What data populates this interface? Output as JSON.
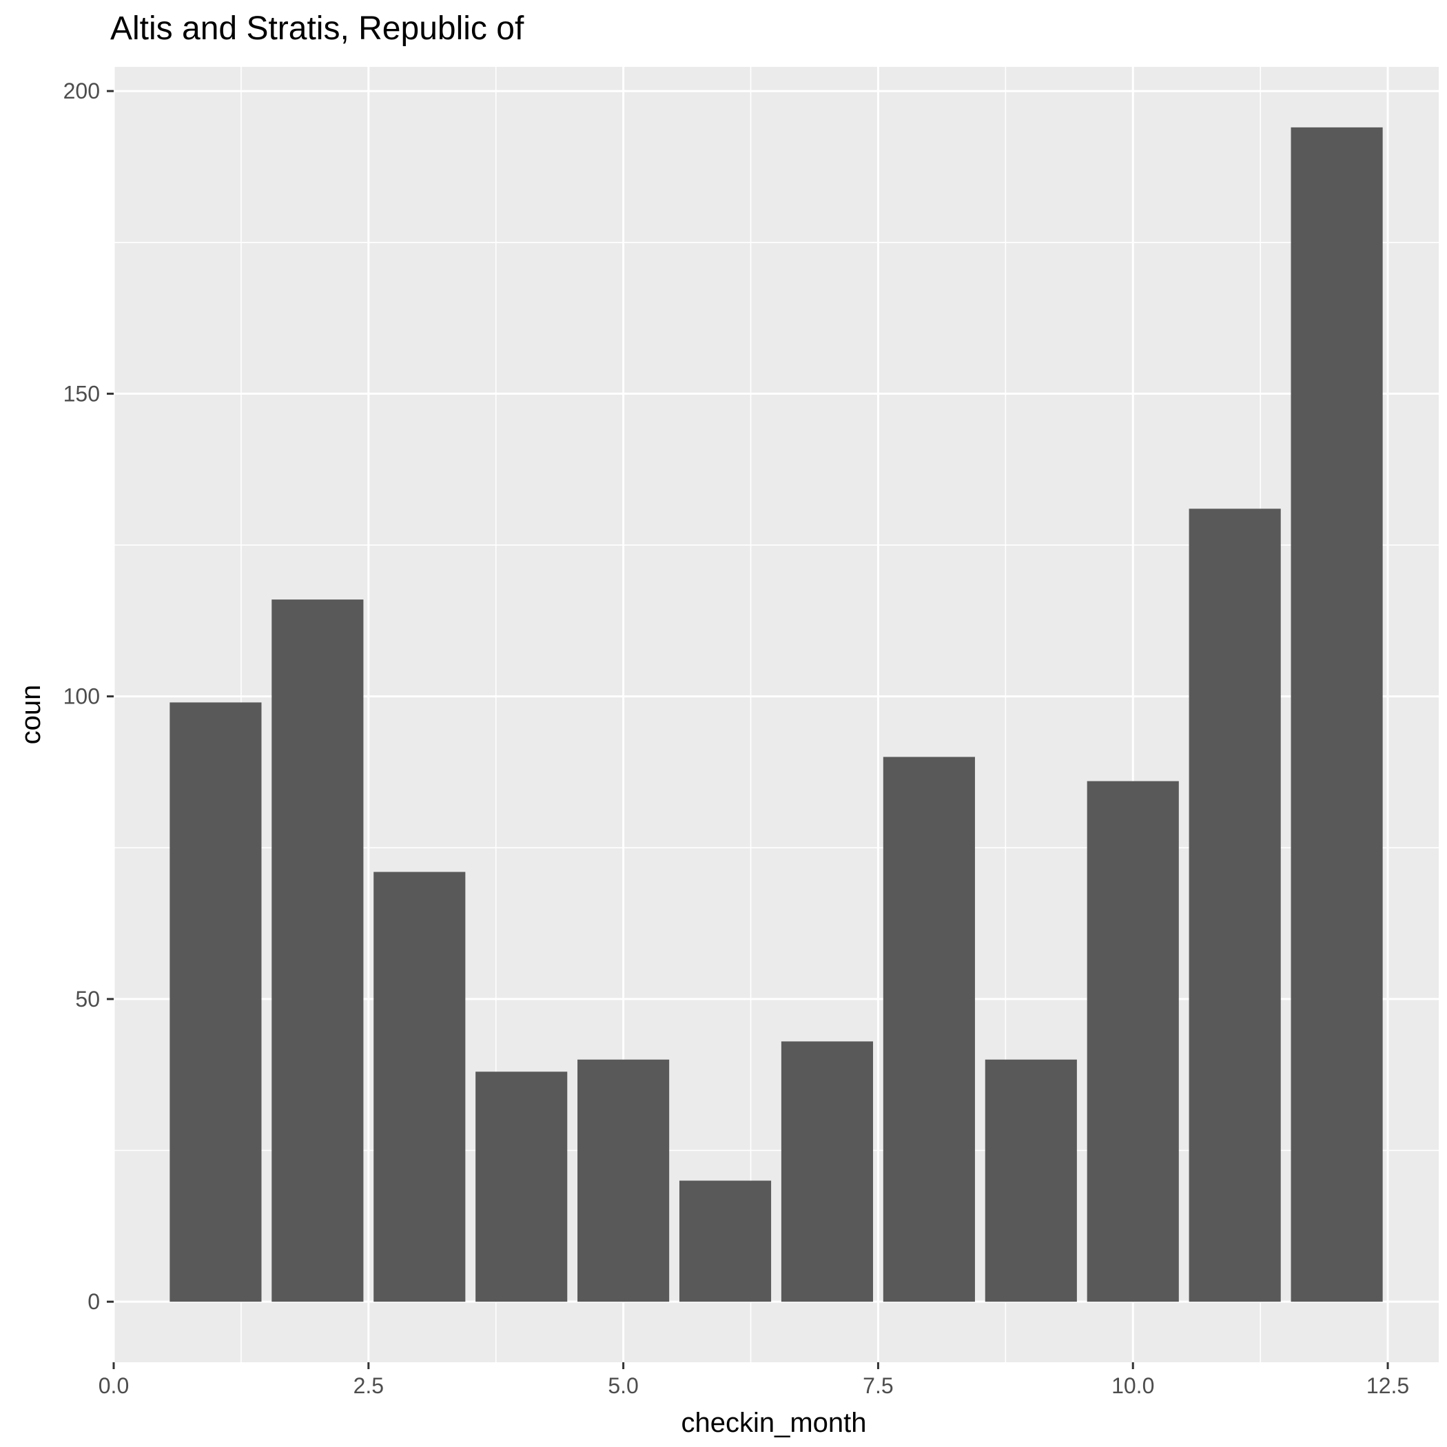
{
  "chart_data": {
    "type": "bar",
    "title": "Altis and Stratis, Republic of",
    "xlabel": "checkin_month",
    "ylabel": "coun",
    "x": [
      1,
      2,
      3,
      4,
      5,
      6,
      7,
      8,
      9,
      10,
      11,
      12
    ],
    "values": [
      99,
      116,
      71,
      38,
      40,
      20,
      43,
      90,
      40,
      86,
      131,
      194
    ],
    "xlim": [
      0.0,
      13.0
    ],
    "ylim": [
      -10,
      204
    ],
    "x_ticks": [
      "0.0",
      "2.5",
      "5.0",
      "7.5",
      "10.0",
      "12.5"
    ],
    "y_ticks": [
      "0",
      "50",
      "100",
      "150",
      "200"
    ],
    "grid": true,
    "colors": {
      "panel_background": "#ebebeb",
      "grid": "#ffffff",
      "bar_fill": "#595959",
      "tick_label": "#4d4d4d",
      "axis_tick": "#333333"
    }
  }
}
